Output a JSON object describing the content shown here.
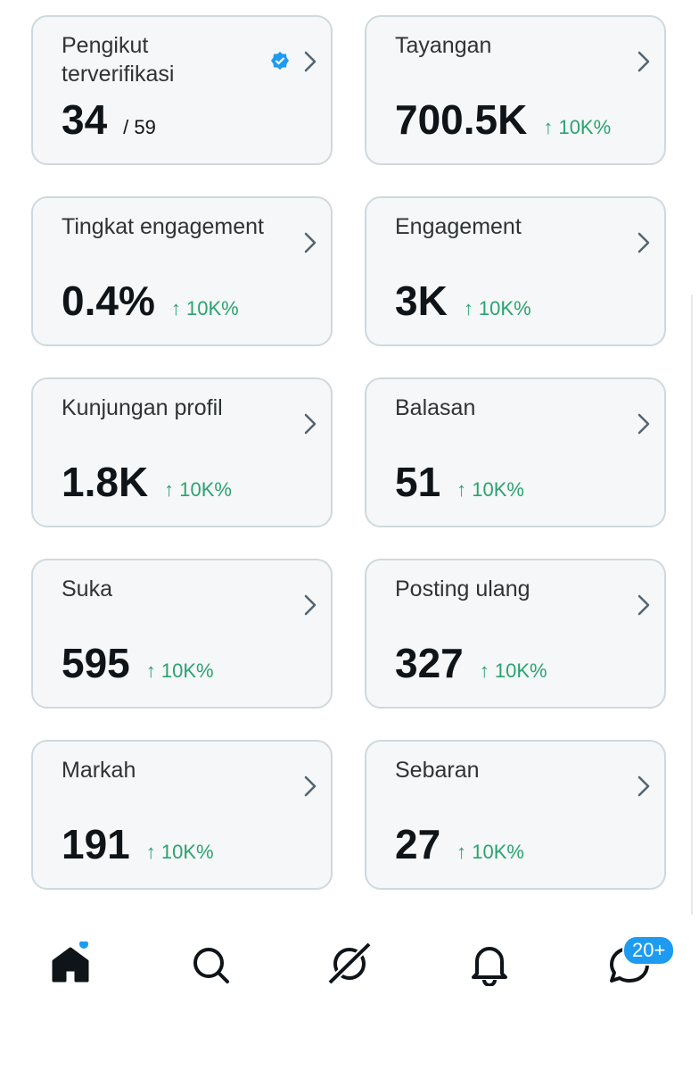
{
  "cards": [
    {
      "label": "Pengikut terverifikasi",
      "value": "34",
      "total": "/ 59"
    },
    {
      "label": "Tayangan",
      "value": "700.5K",
      "change": "↑ 10K%"
    },
    {
      "label": "Tingkat engagement",
      "value": "0.4%",
      "change": "↑ 10K%"
    },
    {
      "label": "Engagement",
      "value": "3K",
      "change": "↑ 10K%"
    },
    {
      "label": "Kunjungan profil",
      "value": "1.8K",
      "change": "↑ 10K%"
    },
    {
      "label": "Balasan",
      "value": "51",
      "change": "↑ 10K%"
    },
    {
      "label": "Suka",
      "value": "595",
      "change": "↑ 10K%"
    },
    {
      "label": "Posting ulang",
      "value": "327",
      "change": "↑ 10K%"
    },
    {
      "label": "Markah",
      "value": "191",
      "change": "↑ 10K%"
    },
    {
      "label": "Sebaran",
      "value": "27",
      "change": "↑ 10K%"
    }
  ],
  "nav": {
    "badge": "20+"
  }
}
